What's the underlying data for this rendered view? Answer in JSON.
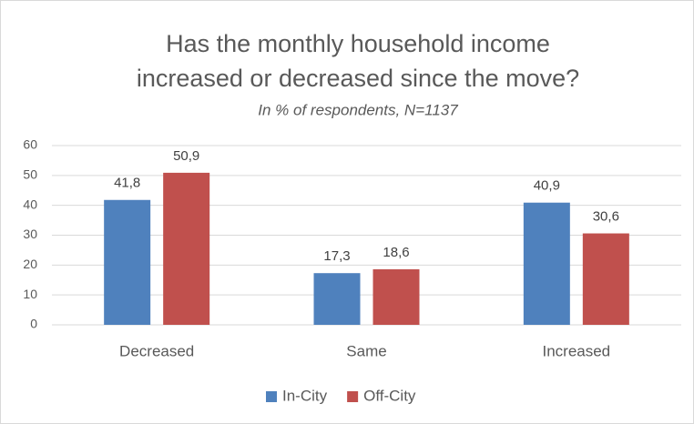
{
  "chart_data": {
    "type": "bar",
    "title": [
      "Has the monthly household income",
      "increased or decreased since the move?"
    ],
    "subtitle": "In % of respondents, N=1137",
    "categories": [
      "Decreased",
      "Same",
      "Increased"
    ],
    "series": [
      {
        "name": "In-City",
        "color": "#4f81bd",
        "values": [
          41.8,
          17.3,
          40.9
        ],
        "value_labels": [
          "41,8",
          "17,3",
          "40,9"
        ]
      },
      {
        "name": "Off-City",
        "color": "#c0504d",
        "values": [
          50.9,
          18.6,
          30.6
        ],
        "value_labels": [
          "50,9",
          "18,6",
          "30,6"
        ]
      }
    ],
    "ylim": [
      0,
      60
    ],
    "yticks": [
      0,
      10,
      20,
      30,
      40,
      50,
      60
    ],
    "grid": true,
    "legend": "bottom"
  }
}
